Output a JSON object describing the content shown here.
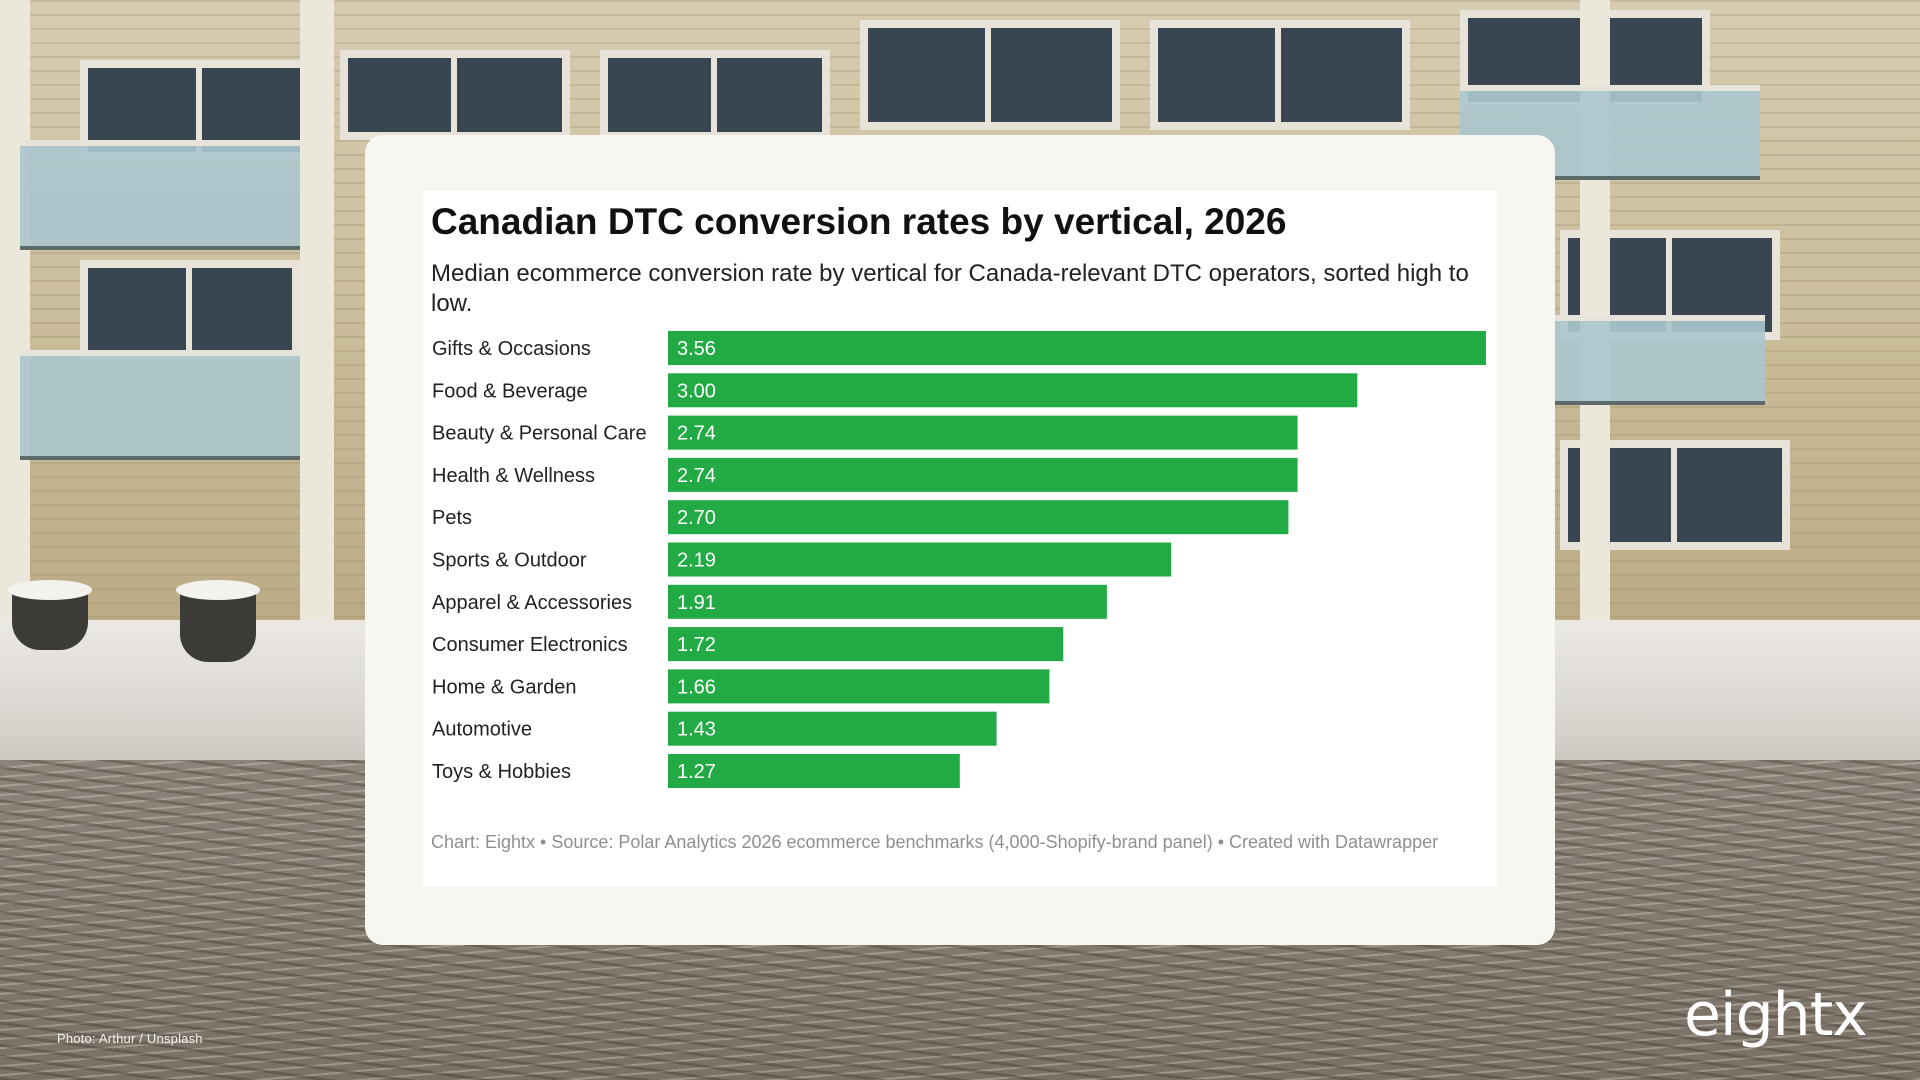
{
  "page": {
    "photo_credit": "Photo: Arthur / Unsplash",
    "brand_logo_text": "eightx"
  },
  "colors": {
    "bar": "#22AA44",
    "bar_label": "#ffffff",
    "category_label": "#222222",
    "card_background": "#f8f6f1",
    "chart_background": "#ffffff"
  },
  "chart_data": {
    "type": "bar",
    "orientation": "horizontal",
    "title": "Canadian DTC conversion rates by vertical, 2026",
    "subtitle": "Median ecommerce conversion rate by vertical for Canada-relevant DTC operators, sorted high to low.",
    "categories": [
      "Gifts & Occasions",
      "Food & Beverage",
      "Beauty & Personal Care",
      "Health & Wellness",
      "Pets",
      "Sports & Outdoor",
      "Apparel & Accessories",
      "Consumer Electronics",
      "Home & Garden",
      "Automotive",
      "Toys & Hobbies"
    ],
    "values": [
      3.56,
      3.0,
      2.74,
      2.74,
      2.7,
      2.19,
      1.91,
      1.72,
      1.66,
      1.43,
      1.27
    ],
    "value_labels": [
      "3.56",
      "3.00",
      "2.74",
      "2.74",
      "2.70",
      "2.19",
      "1.91",
      "1.72",
      "1.66",
      "1.43",
      "1.27"
    ],
    "xlim": [
      0,
      3.56
    ],
    "grid": false,
    "notes": "Chart: Eightx • Source: Polar Analytics 2026 ecommerce benchmarks (4,000-Shopify-brand panel) • Created with Datawrapper"
  }
}
